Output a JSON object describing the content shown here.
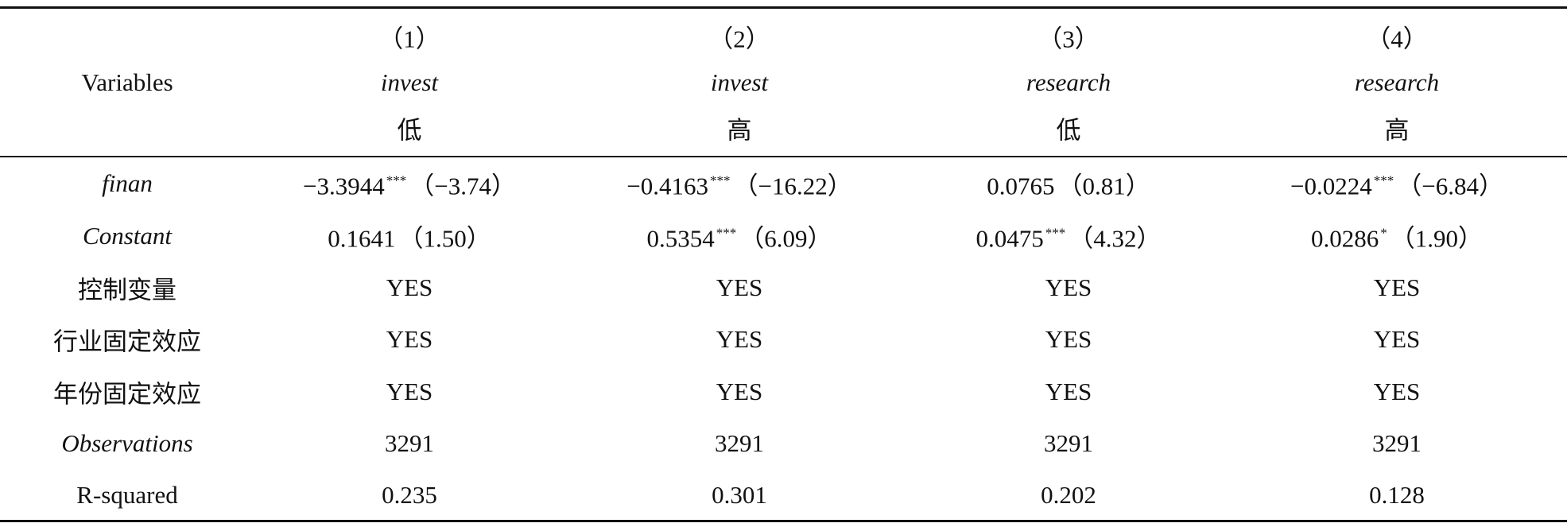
{
  "header": {
    "variables": "Variables",
    "columns": [
      {
        "number": "（1）",
        "dependent": "invest",
        "group": "低"
      },
      {
        "number": "（2）",
        "dependent": "invest",
        "group": "高"
      },
      {
        "number": "（3）",
        "dependent": "research",
        "group": "低"
      },
      {
        "number": "（4）",
        "dependent": "research",
        "group": "高"
      }
    ]
  },
  "table": {
    "rows": [
      {
        "label": "finan",
        "cells": [
          {
            "coef": "−3.3944",
            "stars": "***",
            "t": "（−3.74）"
          },
          {
            "coef": "−0.4163",
            "stars": "***",
            "t": "（−16.22）"
          },
          {
            "coef": "0.0765",
            "t": "（0.81）"
          },
          {
            "coef": "−0.0224",
            "stars": "***",
            "t": "（−6.84）"
          }
        ]
      },
      {
        "label": "Constant",
        "cells": [
          {
            "coef": "0.1641",
            "t": "（1.50）"
          },
          {
            "coef": "0.5354",
            "stars": "***",
            "t": "（6.09）"
          },
          {
            "coef": "0.0475",
            "stars": "***",
            "t": "（4.32）"
          },
          {
            "coef": "0.0286",
            "stars": "*",
            "t": "（1.90）"
          }
        ]
      },
      {
        "label": "控制变量",
        "cells": [
          "YES",
          "YES",
          "YES",
          "YES"
        ]
      },
      {
        "label": "行业固定效应",
        "cells": [
          "YES",
          "YES",
          "YES",
          "YES"
        ]
      },
      {
        "label": "年份固定效应",
        "cells": [
          "YES",
          "YES",
          "YES",
          "YES"
        ]
      },
      {
        "label": "Observations",
        "cells": [
          "3291",
          "3291",
          "3291",
          "3291"
        ]
      },
      {
        "label": "R-squared",
        "cells": [
          "0.235",
          "0.301",
          "0.202",
          "0.128"
        ]
      }
    ]
  }
}
